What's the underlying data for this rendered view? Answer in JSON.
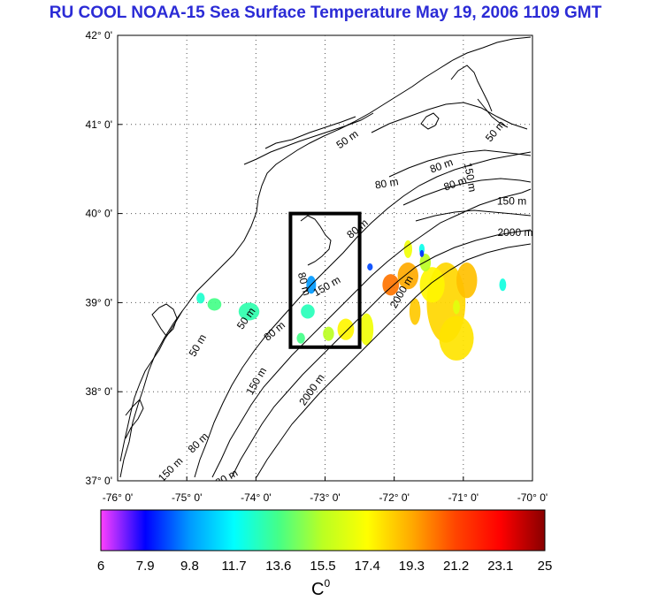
{
  "title": "RU COOL  NOAA-15 Sea Surface Temperature May 19, 2006 1109 GMT",
  "map": {
    "lon_range": [
      -76,
      -70
    ],
    "lat_range": [
      37,
      42
    ],
    "lon_labels": [
      "-76° 0'",
      "-75° 0'",
      "-74° 0'",
      "-73° 0'",
      "-72° 0'",
      "-71° 0'",
      "-70° 0'"
    ],
    "lat_labels": [
      "42° 0'",
      "41° 0'",
      "40° 0'",
      "39° 0'",
      "38° 0'",
      "37° 0'"
    ],
    "study_box": {
      "lon_min": -73.5,
      "lon_max": -72.5,
      "lat_min": 38.5,
      "lat_max": 40
    },
    "contour_labels": [
      {
        "text": "50 m",
        "lon": -72.65,
        "lat": 40.8,
        "rot": -35
      },
      {
        "text": "50 m",
        "lon": -70.5,
        "lat": 40.9,
        "rot": -50
      },
      {
        "text": "80 m",
        "lon": -72.1,
        "lat": 40.3,
        "rot": -10
      },
      {
        "text": "80 m",
        "lon": -71.3,
        "lat": 40.5,
        "rot": -20
      },
      {
        "text": "80 m",
        "lon": -71.1,
        "lat": 40.3,
        "rot": -20
      },
      {
        "text": "150 m",
        "lon": -70.3,
        "lat": 40.1,
        "rot": 0
      },
      {
        "text": "150 m",
        "lon": -70.95,
        "lat": 40.4,
        "rot": 80
      },
      {
        "text": "2000 m",
        "lon": -70.25,
        "lat": 39.75,
        "rot": 0
      },
      {
        "text": "2000 m",
        "lon": -71.85,
        "lat": 39.1,
        "rot": -60
      },
      {
        "text": "80 m",
        "lon": -72.5,
        "lat": 39.8,
        "rot": -40
      },
      {
        "text": "150 m",
        "lon": -72.95,
        "lat": 39.15,
        "rot": -30
      },
      {
        "text": "80 m",
        "lon": -73.35,
        "lat": 39.2,
        "rot": 75
      },
      {
        "text": "50 m",
        "lon": -74.8,
        "lat": 38.5,
        "rot": -60
      },
      {
        "text": "50 m",
        "lon": -74.1,
        "lat": 38.8,
        "rot": -55
      },
      {
        "text": "80 m",
        "lon": -73.7,
        "lat": 38.65,
        "rot": -40
      },
      {
        "text": "150 m",
        "lon": -73.95,
        "lat": 38.1,
        "rot": -60
      },
      {
        "text": "2000 m",
        "lon": -73.15,
        "lat": 38.0,
        "rot": -55
      },
      {
        "text": "80 m",
        "lon": -74.8,
        "lat": 37.4,
        "rot": -45
      },
      {
        "text": "150 m",
        "lon": -75.2,
        "lat": 37.1,
        "rot": -45
      },
      {
        "text": "80 m",
        "lon": -74.4,
        "lat": 37.0,
        "rot": -30
      }
    ]
  },
  "colorbar": {
    "min": 6,
    "max": 25,
    "tick_labels": [
      "6",
      "7.9",
      "9.8",
      "11.7",
      "13.6",
      "15.5",
      "17.4",
      "19.3",
      "21.2",
      "23.1",
      "25"
    ],
    "unit_label": "C",
    "unit_superscript": "0",
    "colors": [
      "#ff40ff",
      "#0000ff",
      "#0099ff",
      "#00ffff",
      "#44ff88",
      "#bbff22",
      "#ffff00",
      "#ffaa00",
      "#ff4400",
      "#ff0000",
      "#880000"
    ]
  },
  "sst_patches": [
    {
      "lon": -71.25,
      "lat": 39.0,
      "rlon": 0.28,
      "rlat": 0.45,
      "temp": 18.3
    },
    {
      "lon": -71.1,
      "lat": 38.6,
      "rlon": 0.25,
      "rlat": 0.25,
      "temp": 18.0
    },
    {
      "lon": -71.45,
      "lat": 39.2,
      "rlon": 0.18,
      "rlat": 0.2,
      "temp": 17.6
    },
    {
      "lon": -70.95,
      "lat": 39.25,
      "rlon": 0.15,
      "rlat": 0.2,
      "temp": 18.8
    },
    {
      "lon": -71.8,
      "lat": 39.3,
      "rlon": 0.15,
      "rlat": 0.15,
      "temp": 19.3
    },
    {
      "lon": -72.05,
      "lat": 39.2,
      "rlon": 0.12,
      "rlat": 0.12,
      "temp": 20.3
    },
    {
      "lon": -71.7,
      "lat": 38.9,
      "rlon": 0.08,
      "rlat": 0.15,
      "temp": 18.6
    },
    {
      "lon": -71.55,
      "lat": 39.45,
      "rlon": 0.08,
      "rlat": 0.1,
      "temp": 15.5
    },
    {
      "lon": -72.7,
      "lat": 38.7,
      "rlon": 0.12,
      "rlat": 0.12,
      "temp": 17.6
    },
    {
      "lon": -72.4,
      "lat": 38.7,
      "rlon": 0.1,
      "rlat": 0.18,
      "temp": 17.0
    },
    {
      "lon": -72.95,
      "lat": 38.65,
      "rlon": 0.08,
      "rlat": 0.08,
      "temp": 15.5
    },
    {
      "lon": -73.2,
      "lat": 39.2,
      "rlon": 0.07,
      "rlat": 0.1,
      "temp": 9.8
    },
    {
      "lon": -73.25,
      "lat": 38.9,
      "rlon": 0.1,
      "rlat": 0.08,
      "temp": 12.8
    },
    {
      "lon": -73.35,
      "lat": 38.6,
      "rlon": 0.06,
      "rlat": 0.06,
      "temp": 13.6
    },
    {
      "lon": -74.1,
      "lat": 38.9,
      "rlon": 0.15,
      "rlat": 0.1,
      "temp": 13.0
    },
    {
      "lon": -74.6,
      "lat": 38.98,
      "rlon": 0.1,
      "rlat": 0.07,
      "temp": 13.6
    },
    {
      "lon": -74.8,
      "lat": 39.05,
      "rlon": 0.06,
      "rlat": 0.06,
      "temp": 12.5
    },
    {
      "lon": -70.43,
      "lat": 39.2,
      "rlon": 0.05,
      "rlat": 0.07,
      "temp": 12.2
    },
    {
      "lon": -71.8,
      "lat": 39.6,
      "rlon": 0.06,
      "rlat": 0.1,
      "temp": 17.0
    },
    {
      "lon": -71.6,
      "lat": 39.6,
      "rlon": 0.04,
      "rlat": 0.06,
      "temp": 12.0
    },
    {
      "lon": -71.6,
      "lat": 39.55,
      "rlon": 0.03,
      "rlat": 0.04,
      "temp": 8.5
    },
    {
      "lon": -71.1,
      "lat": 38.95,
      "rlon": 0.05,
      "rlat": 0.08,
      "temp": 16.6
    },
    {
      "lon": -72.35,
      "lat": 39.4,
      "rlon": 0.04,
      "rlat": 0.04,
      "temp": 8.8
    }
  ]
}
